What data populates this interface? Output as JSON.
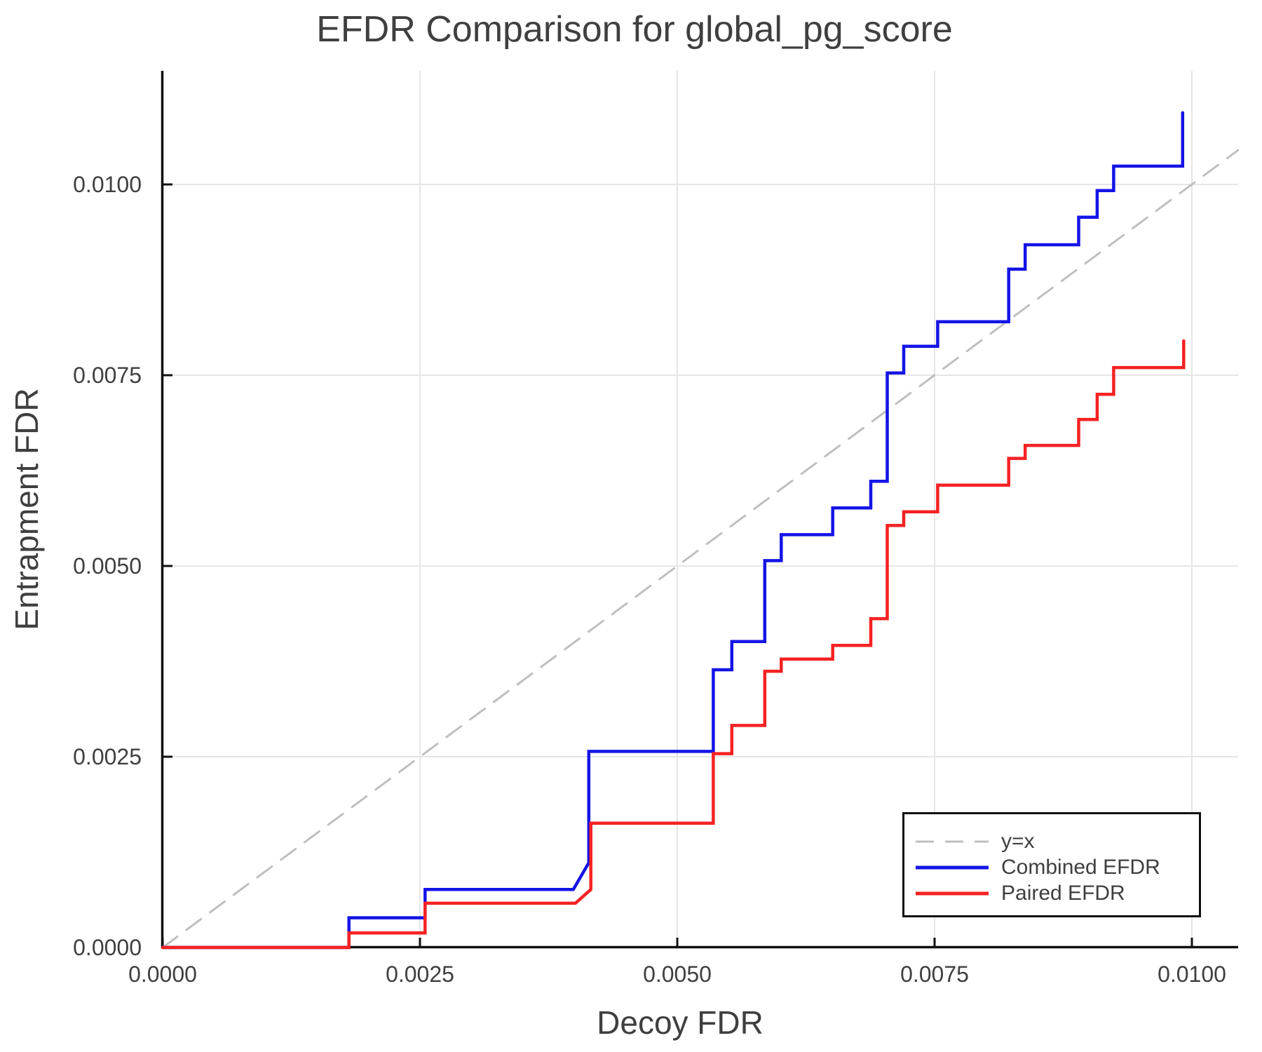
{
  "chart_data": {
    "type": "line",
    "title": "EFDR Comparison for global_pg_score",
    "xlabel": "Decoy FDR",
    "ylabel": "Entrapment FDR",
    "xlim": [
      0.0,
      0.010449
    ],
    "ylim": [
      0.0,
      0.011489
    ],
    "grid": true,
    "grid_color": "#e6e6e6",
    "spine_color": "#111111",
    "text_color": "#3f3f3f",
    "x_ticks": {
      "values": [
        0.0,
        0.0025,
        0.005,
        0.0075,
        0.01
      ],
      "labels": [
        "0.0000",
        "0.0025",
        "0.0050",
        "0.0075",
        "0.0100"
      ]
    },
    "y_ticks": {
      "values": [
        0.0,
        0.0025,
        0.005,
        0.0075,
        0.01
      ],
      "labels": [
        "0.0000",
        "0.0025",
        "0.0050",
        "0.0075",
        "0.0100"
      ]
    },
    "legend": {
      "position": "lower right"
    },
    "series": [
      {
        "name": "y=x",
        "color": "#bfbfbf",
        "style": "dashed",
        "width": 3,
        "points": [
          [
            0.0,
            0.0
          ],
          [
            0.010449,
            0.010449
          ]
        ]
      },
      {
        "name": "Combined EFDR",
        "color": "#1414e6",
        "style": "solid",
        "width": 4.5,
        "points": [
          [
            0.0,
            0.0
          ],
          [
            0.00181,
            0.0
          ],
          [
            0.00181,
            0.00039
          ],
          [
            0.00255,
            0.00039
          ],
          [
            0.00255,
            0.00076
          ],
          [
            0.00399,
            0.00076
          ],
          [
            0.00414,
            0.00111
          ],
          [
            0.00414,
            0.00257
          ],
          [
            0.00535,
            0.00257
          ],
          [
            0.00535,
            0.00364
          ],
          [
            0.00553,
            0.00364
          ],
          [
            0.00553,
            0.00401
          ],
          [
            0.00585,
            0.00401
          ],
          [
            0.00585,
            0.00507
          ],
          [
            0.00601,
            0.00507
          ],
          [
            0.00601,
            0.00541
          ],
          [
            0.00651,
            0.00541
          ],
          [
            0.00651,
            0.00576
          ],
          [
            0.00688,
            0.00576
          ],
          [
            0.00688,
            0.00611
          ],
          [
            0.00704,
            0.00611
          ],
          [
            0.00704,
            0.00753
          ],
          [
            0.0072,
            0.00753
          ],
          [
            0.0072,
            0.00788
          ],
          [
            0.00753,
            0.00788
          ],
          [
            0.00753,
            0.0082
          ],
          [
            0.00822,
            0.0082
          ],
          [
            0.00822,
            0.00889
          ],
          [
            0.00838,
            0.00889
          ],
          [
            0.00838,
            0.00921
          ],
          [
            0.0089,
            0.00921
          ],
          [
            0.0089,
            0.00957
          ],
          [
            0.00908,
            0.00957
          ],
          [
            0.00908,
            0.00992
          ],
          [
            0.00924,
            0.00992
          ],
          [
            0.00924,
            0.01024
          ],
          [
            0.00991,
            0.01024
          ],
          [
            0.00991,
            0.01094
          ]
        ]
      },
      {
        "name": "Paired EFDR",
        "color": "#f52222",
        "style": "solid",
        "width": 4.5,
        "points": [
          [
            0.0,
            0.0
          ],
          [
            0.00181,
            0.0
          ],
          [
            0.00181,
            0.00019
          ],
          [
            0.00255,
            0.00019
          ],
          [
            0.00255,
            0.00058
          ],
          [
            0.00401,
            0.00058
          ],
          [
            0.00416,
            0.00076
          ],
          [
            0.00416,
            0.00163
          ],
          [
            0.00535,
            0.00163
          ],
          [
            0.00535,
            0.00254
          ],
          [
            0.00553,
            0.00254
          ],
          [
            0.00553,
            0.00291
          ],
          [
            0.00585,
            0.00291
          ],
          [
            0.00585,
            0.00362
          ],
          [
            0.00601,
            0.00362
          ],
          [
            0.00601,
            0.00378
          ],
          [
            0.00651,
            0.00378
          ],
          [
            0.00651,
            0.00396
          ],
          [
            0.00688,
            0.00396
          ],
          [
            0.00688,
            0.00431
          ],
          [
            0.00704,
            0.00431
          ],
          [
            0.00704,
            0.00553
          ],
          [
            0.0072,
            0.00553
          ],
          [
            0.0072,
            0.00571
          ],
          [
            0.00753,
            0.00571
          ],
          [
            0.00753,
            0.00606
          ],
          [
            0.00822,
            0.00606
          ],
          [
            0.00822,
            0.00641
          ],
          [
            0.00838,
            0.00641
          ],
          [
            0.00838,
            0.00658
          ],
          [
            0.0089,
            0.00658
          ],
          [
            0.0089,
            0.00692
          ],
          [
            0.00908,
            0.00692
          ],
          [
            0.00908,
            0.00725
          ],
          [
            0.00924,
            0.00725
          ],
          [
            0.00924,
            0.0076
          ],
          [
            0.00992,
            0.0076
          ],
          [
            0.00992,
            0.00795
          ]
        ]
      }
    ]
  }
}
